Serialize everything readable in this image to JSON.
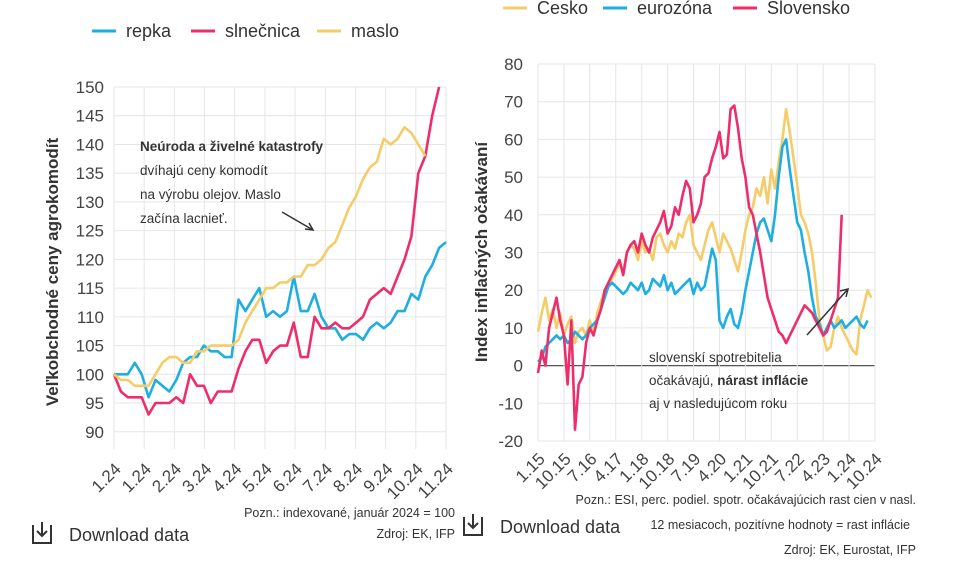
{
  "colors": {
    "repka": "#1eaee2",
    "slnecnica": "#ee2d6b",
    "maslo": "#f5cc68",
    "cesko": "#f5cc68",
    "eurozona": "#1eaee2",
    "slovensko": "#ee2d6b"
  },
  "download_label": "Download data",
  "chart_data": [
    {
      "type": "line",
      "ylabel": "Veľkobchodné ceny agrokomodít",
      "ylim": [
        87,
        150
      ],
      "yticks": [
        90,
        95,
        100,
        105,
        110,
        115,
        120,
        125,
        130,
        135,
        140,
        145,
        150
      ],
      "xticks": [
        "1.24",
        "1.24",
        "2.24",
        "3.24",
        "4.24",
        "5.24",
        "6.24",
        "7.24",
        "8.24",
        "9.24",
        "10.24",
        "11.24"
      ],
      "legend": [
        "repka",
        "slnečnica",
        "maslo"
      ],
      "annotation": {
        "title": "Neúroda a živelné katastrofy",
        "lines": [
          "dvíhajú ceny komodít",
          "na výrobu olejov. Maslo",
          "začína lacnieť."
        ]
      },
      "footnote": "Pozn.: indexované, január 2024 = 100",
      "source": "Zdroj: EK, IFP",
      "series": [
        {
          "name": "repka",
          "values": [
            100,
            100,
            100,
            102,
            100,
            96,
            99,
            98,
            97,
            99,
            102,
            103,
            103,
            105,
            104,
            104,
            103,
            103,
            113,
            111,
            113,
            115,
            110,
            111,
            110,
            111,
            117,
            111,
            111,
            114,
            110,
            108,
            108,
            106,
            107,
            107,
            106,
            108,
            109,
            108,
            109,
            111,
            111,
            114,
            113,
            117,
            119,
            122,
            123
          ]
        },
        {
          "name": "slnečnica",
          "values": [
            100,
            97,
            96,
            96,
            96,
            93,
            95,
            95,
            95,
            96,
            95,
            100,
            98,
            98,
            95,
            97,
            97,
            97,
            101,
            104,
            106,
            106,
            102,
            104,
            105,
            105,
            109,
            103,
            103,
            110,
            108,
            108,
            109,
            108,
            108,
            109,
            110,
            113,
            114,
            115,
            114,
            117,
            120,
            124,
            135,
            138,
            145,
            150
          ]
        },
        {
          "name": "maslo",
          "values": [
            100,
            99,
            99,
            98,
            98,
            98,
            100,
            102,
            103,
            103,
            102,
            102,
            104,
            104,
            105,
            105,
            105,
            105,
            106,
            109,
            111,
            113,
            115,
            115,
            116,
            116,
            117,
            117,
            119,
            119,
            120,
            122,
            123,
            126,
            129,
            131,
            134,
            136,
            137,
            141,
            140,
            141,
            143,
            142,
            140,
            138
          ]
        }
      ]
    },
    {
      "type": "line",
      "ylabel": "Index inflačných očakávaní",
      "ylim": [
        -20,
        80
      ],
      "yticks": [
        -20,
        -10,
        0,
        10,
        20,
        30,
        40,
        50,
        60,
        70,
        80
      ],
      "xticks": [
        "1.15",
        "10.15",
        "7.16",
        "4.17",
        "1.18",
        "10.18",
        "7.19",
        "4.20",
        "1.21",
        "10.21",
        "7.22",
        "4.23",
        "1.24",
        "10.24"
      ],
      "legend": [
        "Česko",
        "eurozóna",
        "Slovensko"
      ],
      "annotation": {
        "lines": [
          "slovenskí spotrebitelia"
        ],
        "rich_prefix": "očakávajú, ",
        "rich_bold": "nárast inflácie",
        "last": "aj v nasledujúcom roku"
      },
      "footnote_lines": [
        "Pozn.: ESI, perc. podiel. spotr. očakávajúcich rast cien v nasl.",
        "12 mesiacoch, pozitívne hodnoty = rast inflácie"
      ],
      "source": "Zdroj: EK, Eurostat, IFP",
      "series": [
        {
          "name": "Česko",
          "values": [
            9,
            14,
            18,
            12,
            15,
            10,
            14,
            8,
            11,
            13,
            6,
            9,
            10,
            8,
            12,
            9,
            14,
            17,
            20,
            21,
            23,
            25,
            27,
            25,
            30,
            32,
            31,
            28,
            33,
            30,
            31,
            28,
            34,
            35,
            32,
            30,
            33,
            31,
            35,
            34,
            38,
            40,
            32,
            30,
            28,
            32,
            36,
            38,
            34,
            30,
            35,
            33,
            31,
            28,
            25,
            30,
            36,
            40,
            42,
            47,
            45,
            50,
            43,
            52,
            47,
            54,
            60,
            68,
            62,
            55,
            48,
            40,
            38,
            35,
            30,
            22,
            12,
            8,
            4,
            5,
            10,
            13,
            10,
            8,
            6,
            4,
            3,
            12,
            16,
            20,
            18
          ]
        },
        {
          "name": "eurozóna",
          "values": [
            1,
            2,
            5,
            6,
            7,
            8,
            7,
            8,
            6,
            7,
            9,
            8,
            7,
            8,
            10,
            11,
            12,
            15,
            18,
            21,
            22,
            21,
            20,
            19,
            20,
            22,
            21,
            20,
            22,
            19,
            20,
            23,
            22,
            21,
            24,
            20,
            22,
            19,
            20,
            21,
            22,
            23,
            19,
            22,
            20,
            21,
            26,
            31,
            28,
            12,
            10,
            13,
            15,
            11,
            10,
            14,
            20,
            25,
            30,
            35,
            38,
            39,
            36,
            33,
            40,
            50,
            58,
            60,
            52,
            45,
            38,
            36,
            30,
            25,
            18,
            13,
            11,
            8,
            10,
            12,
            10,
            11,
            12,
            10,
            11,
            12,
            13,
            11,
            10,
            12
          ]
        },
        {
          "name": "Slovensko",
          "values": [
            -2,
            4,
            0,
            10,
            14,
            18,
            12,
            8,
            -5,
            12,
            -17,
            -5,
            -3,
            6,
            10,
            8,
            12,
            15,
            20,
            22,
            24,
            26,
            28,
            24,
            30,
            32,
            33,
            30,
            35,
            32,
            30,
            34,
            36,
            38,
            41,
            35,
            37,
            42,
            40,
            45,
            49,
            47,
            38,
            40,
            43,
            50,
            51,
            55,
            58,
            62,
            55,
            56,
            68,
            69,
            63,
            55,
            50,
            42,
            40,
            35,
            30,
            24,
            18,
            15,
            12,
            9,
            8,
            6,
            8,
            10,
            12,
            14,
            16,
            15,
            14,
            12,
            10,
            8,
            9,
            12,
            15,
            18,
            40
          ]
        }
      ]
    }
  ]
}
